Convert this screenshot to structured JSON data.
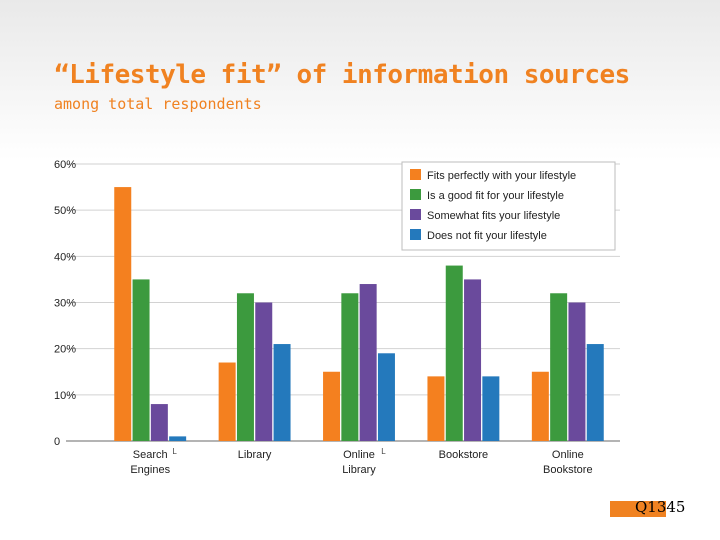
{
  "slide": {
    "title": "“Lifestyle fit” of information sources",
    "subtitle": "among total respondents",
    "footer_code": "Q1345"
  },
  "colors": {
    "accent": "#f08221",
    "series": [
      "#f4801f",
      "#3c9a3e",
      "#6a4a9c",
      "#2479bc"
    ]
  },
  "chart_data": {
    "type": "bar",
    "title": "",
    "xlabel": "",
    "ylabel": "",
    "ylim": [
      0,
      60
    ],
    "yticks": [
      0,
      10,
      20,
      30,
      40,
      50,
      60
    ],
    "ytick_labels": [
      "0",
      "10%",
      "20%",
      "30%",
      "40%",
      "50%",
      "60%"
    ],
    "categories": [
      {
        "lines": [
          "Search",
          "Engines"
        ],
        "flag": "L"
      },
      {
        "lines": [
          "Library"
        ],
        "flag": ""
      },
      {
        "lines": [
          "Online",
          "Library"
        ],
        "flag": "L"
      },
      {
        "lines": [
          "Bookstore"
        ],
        "flag": ""
      },
      {
        "lines": [
          "Online",
          "Bookstore"
        ],
        "flag": ""
      }
    ],
    "series": [
      {
        "name": "Fits perfectly with your lifestyle",
        "values": [
          55,
          17,
          15,
          14,
          15
        ]
      },
      {
        "name": "Is a good fit for your lifestyle",
        "values": [
          35,
          32,
          32,
          38,
          32
        ]
      },
      {
        "name": "Somewhat fits your lifestyle",
        "values": [
          8,
          30,
          34,
          35,
          30
        ]
      },
      {
        "name": "Does not fit your lifestyle",
        "values": [
          1,
          21,
          19,
          14,
          21
        ]
      }
    ],
    "legend_position": "top-right",
    "grid": true
  }
}
